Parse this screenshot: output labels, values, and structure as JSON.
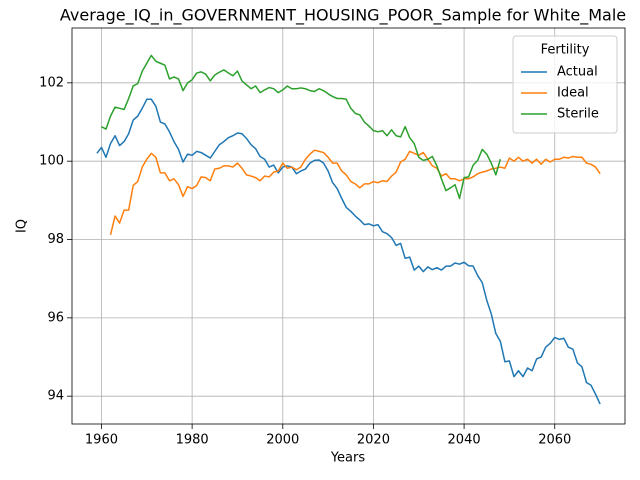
{
  "chart_data": {
    "type": "line",
    "title": "Average_IQ_in_GOVERNMENT_HOUSING_POOR_Sample for White_Male",
    "xlabel": "Years",
    "ylabel": "IQ",
    "legend_title": "Fertility",
    "legend": "upper right",
    "grid": true,
    "xlim": [
      1953.5,
      2075.5
    ],
    "xticks": [
      1960,
      1980,
      2000,
      2020,
      2040,
      2060
    ],
    "ylim": [
      93.29,
      103.4
    ],
    "yticks": [
      94,
      96,
      98,
      100,
      102
    ],
    "x": [
      1959,
      1960,
      1961,
      1962,
      1963,
      1964,
      1965,
      1966,
      1967,
      1968,
      1969,
      1970,
      1971,
      1972,
      1973,
      1974,
      1975,
      1976,
      1977,
      1978,
      1979,
      1980,
      1981,
      1982,
      1983,
      1984,
      1985,
      1986,
      1987,
      1988,
      1989,
      1990,
      1991,
      1992,
      1993,
      1994,
      1995,
      1996,
      1997,
      1998,
      1999,
      2000,
      2001,
      2002,
      2003,
      2004,
      2005,
      2006,
      2007,
      2008,
      2009,
      2010,
      2011,
      2012,
      2013,
      2014,
      2015,
      2016,
      2017,
      2018,
      2019,
      2020,
      2021,
      2022,
      2023,
      2024,
      2025,
      2026,
      2027,
      2028,
      2029,
      2030,
      2031,
      2032,
      2033,
      2034,
      2035,
      2036,
      2037,
      2038,
      2039,
      2040,
      2041,
      2042,
      2043,
      2044,
      2045,
      2046,
      2047,
      2048,
      2049,
      2050,
      2051,
      2052,
      2053,
      2054,
      2055,
      2056,
      2057,
      2058,
      2059,
      2060,
      2061,
      2062,
      2063,
      2064,
      2065,
      2066,
      2067,
      2068,
      2069,
      2070
    ],
    "series": [
      {
        "name": "Actual",
        "color": "#1f77b4",
        "values": [
          100.2,
          100.35,
          100.1,
          100.45,
          100.65,
          100.4,
          100.5,
          100.7,
          101.05,
          101.15,
          101.35,
          101.58,
          101.58,
          101.4,
          101.0,
          100.95,
          100.75,
          100.5,
          100.3,
          99.98,
          100.18,
          100.15,
          100.25,
          100.22,
          100.15,
          100.08,
          100.25,
          100.42,
          100.5,
          100.6,
          100.65,
          100.72,
          100.7,
          100.58,
          100.42,
          100.32,
          100.12,
          100.05,
          99.85,
          99.9,
          99.7,
          99.85,
          99.88,
          99.85,
          99.68,
          99.75,
          99.8,
          99.95,
          100.02,
          100.03,
          99.95,
          99.75,
          99.45,
          99.3,
          99.05,
          98.82,
          98.72,
          98.6,
          98.5,
          98.38,
          98.4,
          98.35,
          98.38,
          98.2,
          98.15,
          98.05,
          97.85,
          97.9,
          97.52,
          97.55,
          97.22,
          97.32,
          97.18,
          97.3,
          97.23,
          97.28,
          97.22,
          97.32,
          97.32,
          97.4,
          97.37,
          97.42,
          97.33,
          97.32,
          97.08,
          96.9,
          96.45,
          96.1,
          95.6,
          95.4,
          94.88,
          94.9,
          94.5,
          94.65,
          94.5,
          94.72,
          94.65,
          94.95,
          95.0,
          95.25,
          95.35,
          95.5,
          95.45,
          95.48,
          95.25,
          95.2,
          94.85,
          94.75,
          94.35,
          94.28,
          94.05,
          93.8
        ]
      },
      {
        "name": "Ideal",
        "color": "#ff7f0e",
        "values": [
          null,
          null,
          null,
          98.12,
          98.6,
          98.42,
          98.75,
          98.75,
          99.38,
          99.48,
          99.85,
          100.05,
          100.2,
          100.1,
          99.7,
          99.7,
          99.5,
          99.55,
          99.4,
          99.1,
          99.35,
          99.3,
          99.38,
          99.6,
          99.58,
          99.5,
          99.8,
          99.82,
          99.88,
          99.88,
          99.85,
          99.95,
          99.82,
          99.65,
          99.62,
          99.58,
          99.5,
          99.62,
          99.6,
          99.72,
          99.75,
          99.95,
          99.82,
          99.85,
          99.78,
          99.85,
          100.05,
          100.18,
          100.28,
          100.25,
          100.22,
          100.1,
          99.95,
          99.95,
          99.75,
          99.65,
          99.48,
          99.42,
          99.32,
          99.42,
          99.42,
          99.48,
          99.45,
          99.5,
          99.48,
          99.62,
          99.72,
          99.98,
          100.05,
          100.25,
          100.2,
          100.15,
          100.22,
          100.05,
          99.88,
          99.82,
          99.62,
          99.68,
          99.55,
          99.55,
          99.5,
          99.55,
          99.55,
          99.6,
          99.68,
          99.72,
          99.75,
          99.8,
          99.82,
          99.85,
          99.82,
          100.08,
          100.0,
          100.1,
          100.0,
          100.05,
          99.95,
          100.05,
          99.92,
          100.05,
          99.98,
          100.05,
          100.05,
          100.1,
          100.08,
          100.12,
          100.1,
          100.1,
          99.95,
          99.92,
          99.85,
          99.68
        ]
      },
      {
        "name": "Sterile",
        "color": "#2ca02c",
        "values": [
          null,
          100.88,
          100.82,
          101.15,
          101.38,
          101.35,
          101.32,
          101.6,
          101.92,
          101.98,
          102.3,
          102.5,
          102.7,
          102.55,
          102.5,
          102.45,
          102.1,
          102.15,
          102.1,
          101.8,
          102.0,
          102.08,
          102.25,
          102.28,
          102.22,
          102.05,
          102.2,
          102.27,
          102.33,
          102.25,
          102.18,
          102.3,
          102.05,
          101.95,
          101.85,
          101.92,
          101.75,
          101.82,
          101.88,
          101.85,
          101.75,
          101.82,
          101.92,
          101.85,
          101.85,
          101.87,
          101.85,
          101.8,
          101.78,
          101.85,
          101.8,
          101.72,
          101.65,
          101.6,
          101.6,
          101.58,
          101.35,
          101.22,
          101.18,
          101.0,
          100.9,
          100.78,
          100.75,
          100.78,
          100.65,
          100.8,
          100.65,
          100.62,
          100.88,
          100.6,
          100.45,
          100.1,
          100.02,
          100.05,
          100.12,
          99.88,
          99.55,
          99.25,
          99.32,
          99.4,
          99.05,
          99.58,
          99.6,
          99.9,
          100.02,
          100.3,
          100.18,
          99.95,
          99.65,
          100.05,
          null,
          null,
          null,
          null,
          null,
          null,
          null,
          null,
          null,
          null,
          null,
          null,
          null,
          null,
          null,
          null,
          null,
          null,
          null,
          null,
          null,
          null
        ]
      }
    ]
  }
}
